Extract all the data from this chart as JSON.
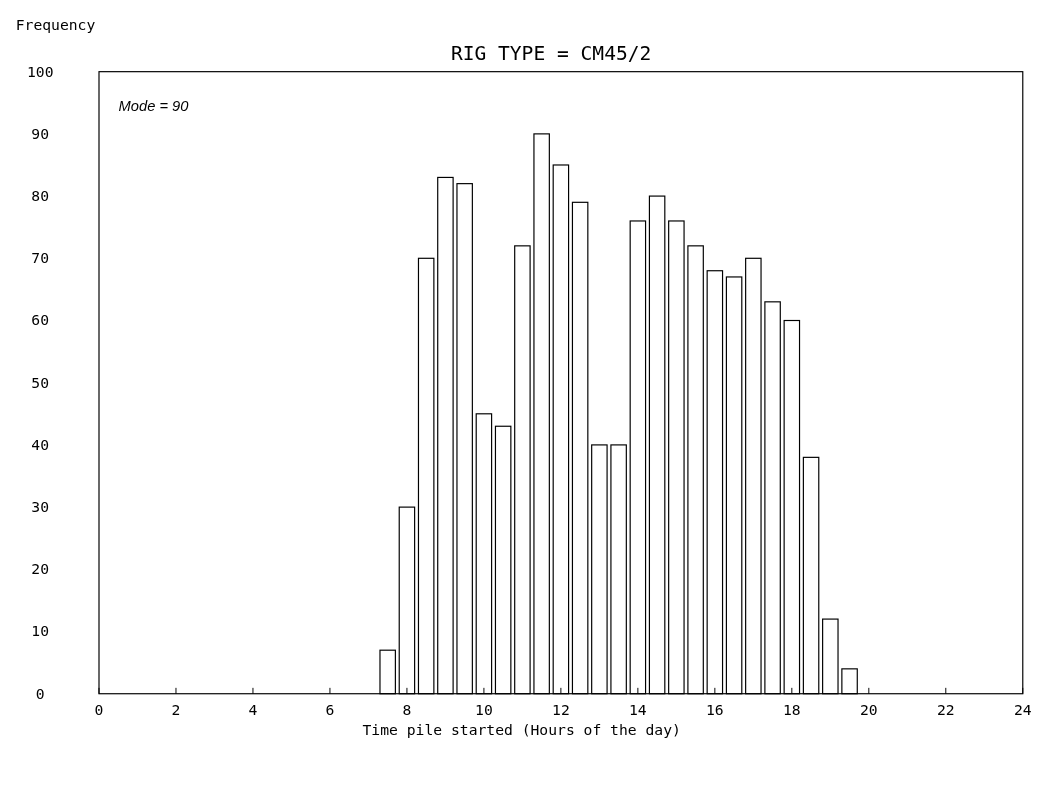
{
  "chart_data": {
    "type": "histogram",
    "title": "RIG TYPE =  CM45/2",
    "xlabel": "Time pile started (Hours of the day)",
    "ylabel": "Frequency",
    "annotations": [
      "Mode = 90"
    ],
    "bins": [
      7.25,
      7.75,
      8.25,
      8.75,
      9.25,
      9.75,
      10.25,
      10.75,
      11.25,
      11.75,
      12.25,
      12.75,
      13.25,
      13.75,
      14.25,
      14.75,
      15.25,
      15.75,
      16.25,
      16.75,
      17.25,
      17.75,
      18.25,
      18.75,
      19.25,
      19.75
    ],
    "values": [
      7,
      30,
      70,
      83,
      82,
      45,
      43,
      72,
      90,
      85,
      79,
      40,
      40,
      76,
      80,
      76,
      72,
      68,
      67,
      70,
      63,
      60,
      38,
      12,
      4
    ],
    "color": "#ffffff",
    "xlim": [
      0,
      24
    ],
    "xticks": [
      0,
      2,
      4,
      6,
      8,
      10,
      12,
      14,
      16,
      18,
      20,
      22,
      24
    ],
    "ylim": [
      0,
      100
    ],
    "yticks": [
      0,
      10,
      20,
      30,
      40,
      50,
      60,
      70,
      80,
      90,
      100
    ],
    "grid": false
  }
}
